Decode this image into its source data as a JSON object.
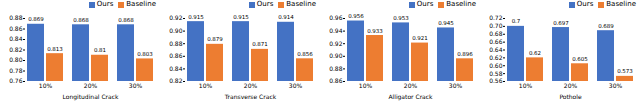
{
  "chart_data": [
    {
      "type": "bar",
      "xlabel": "Longitudinal Crack",
      "categories": [
        "10%",
        "20%",
        "30%"
      ],
      "series": [
        {
          "name": "Ours",
          "color": "#4472c4",
          "values": [
            0.869,
            0.868,
            0.868
          ]
        },
        {
          "name": "Baseline",
          "color": "#ed7d31",
          "values": [
            0.813,
            0.81,
            0.803
          ]
        }
      ],
      "ylim": [
        0.76,
        0.88
      ],
      "yticks": [
        0.76,
        0.78,
        {
          "value": 0.8,
          "label": "0.80"
        },
        0.82,
        0.84,
        0.86,
        0.88
      ],
      "data_labels": true,
      "legend": "upper right"
    },
    {
      "type": "bar",
      "xlabel": "Transverse Crack",
      "categories": [
        "10%",
        "20%",
        "30%"
      ],
      "series": [
        {
          "name": "Ours",
          "color": "#4472c4",
          "values": [
            0.915,
            0.915,
            0.914
          ]
        },
        {
          "name": "Baseline",
          "color": "#ed7d31",
          "values": [
            0.879,
            0.871,
            0.856
          ]
        }
      ],
      "ylim": [
        0.82,
        0.92
      ],
      "yticks": [
        0.82,
        0.84,
        0.86,
        0.88,
        {
          "value": 0.9,
          "label": "0.90"
        },
        0.92
      ],
      "data_labels": true,
      "legend": "upper right"
    },
    {
      "type": "bar",
      "xlabel": "Alligator Crack",
      "categories": [
        "10%",
        "20%",
        "30%"
      ],
      "series": [
        {
          "name": "Ours",
          "color": "#4472c4",
          "values": [
            0.956,
            0.953,
            0.945
          ]
        },
        {
          "name": "Baseline",
          "color": "#ed7d31",
          "values": [
            0.933,
            0.921,
            0.896
          ]
        }
      ],
      "ylim": [
        0.86,
        0.96
      ],
      "yticks": [
        0.86,
        0.88,
        {
          "value": 0.9,
          "label": "0.90"
        },
        0.92,
        0.94,
        0.96
      ],
      "data_labels": true,
      "legend": "upper right"
    },
    {
      "type": "bar",
      "xlabel": "Pothole",
      "categories": [
        "10%",
        "20%",
        "30%"
      ],
      "series": [
        {
          "name": "Ours",
          "color": "#4472c4",
          "values": [
            0.7,
            0.697,
            0.689
          ]
        },
        {
          "name": "Baseline",
          "color": "#ed7d31",
          "values": [
            0.62,
            0.605,
            0.573
          ]
        }
      ],
      "ylim": [
        0.56,
        0.72
      ],
      "yticks": [
        0.56,
        0.58,
        {
          "value": 0.6,
          "label": "0.60"
        },
        0.62,
        0.64,
        0.66,
        0.68,
        {
          "value": 0.7,
          "label": "0.70"
        },
        0.72
      ],
      "data_labels": true,
      "legend": "upper right"
    }
  ]
}
